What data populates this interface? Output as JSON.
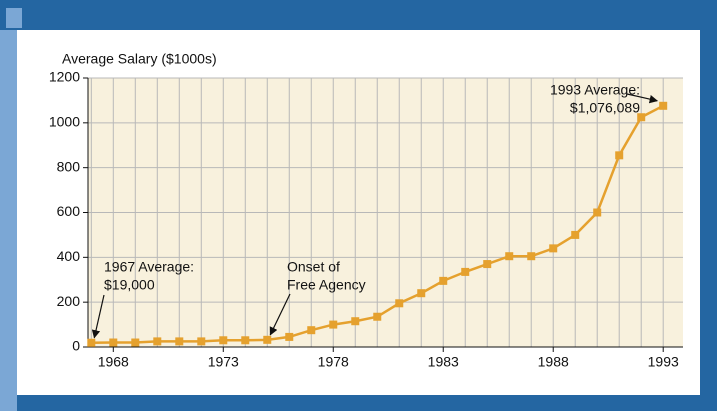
{
  "chart_data": {
    "type": "line",
    "y_label": "Average Salary ($1000s)",
    "x": [
      1967,
      1968,
      1969,
      1970,
      1971,
      1972,
      1973,
      1974,
      1975,
      1976,
      1977,
      1978,
      1979,
      1980,
      1981,
      1982,
      1983,
      1984,
      1985,
      1986,
      1987,
      1988,
      1989,
      1990,
      1991,
      1992,
      1993
    ],
    "series": [
      {
        "name": "Average Salary",
        "color": "#e5a12e",
        "values": [
          19,
          20,
          20,
          25,
          25,
          25,
          30,
          30,
          32,
          45,
          75,
          100,
          115,
          135,
          195,
          240,
          295,
          335,
          370,
          405,
          405,
          440,
          500,
          600,
          855,
          1025,
          1076
        ]
      }
    ],
    "xlim": [
      1966.85,
      1993.9
    ],
    "xticks": [
      1968,
      1973,
      1978,
      1983,
      1988,
      1993
    ],
    "ylim": [
      0,
      1200
    ],
    "yticks": [
      0,
      200,
      400,
      600,
      800,
      1000,
      1200
    ],
    "grid": true,
    "annotations": [
      {
        "lines": [
          "1967 Average:",
          "$19,000"
        ]
      },
      {
        "lines": [
          "Onset of",
          "Free Agency"
        ]
      },
      {
        "lines": [
          "1993 Average:",
          "$1,076,089"
        ]
      }
    ]
  }
}
